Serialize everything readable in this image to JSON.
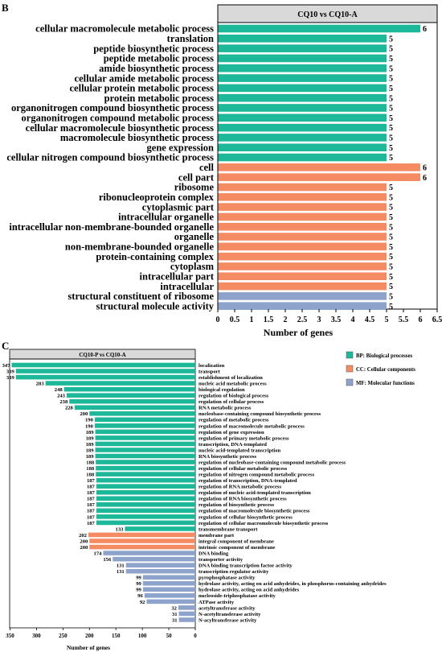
{
  "colors": {
    "bp": "#1db899",
    "cc": "#f58b62",
    "mf": "#8ea3cb",
    "strip": "#d9d9d9"
  },
  "panel_b": {
    "letter": "B"
  },
  "panel_c": {
    "letter": "C"
  },
  "legend": [
    {
      "label": "BP: Biological processes",
      "color": "#1db899"
    },
    {
      "label": "CC: Cellular components",
      "color": "#f58b62"
    },
    {
      "label": "MF: Molecular functions",
      "color": "#8ea3cb"
    }
  ],
  "chart_data": [
    {
      "type": "bar",
      "orientation": "horizontal",
      "title": "CQ10 vs CQ10-A",
      "xlabel": "Number of genes",
      "xlim": [
        0,
        6.5
      ],
      "xticks": [
        "0",
        "0.5",
        "1",
        "1.5",
        "2",
        "2.5",
        "3",
        "3.5",
        "4",
        "4.5",
        "5",
        "5.5",
        "6",
        "6.5"
      ],
      "categories": [
        {
          "label": "cellular macromolecule metabolic process",
          "value": 6,
          "group": "bp"
        },
        {
          "label": "translation",
          "value": 5,
          "group": "bp"
        },
        {
          "label": "peptide biosynthetic process",
          "value": 5,
          "group": "bp"
        },
        {
          "label": "peptide metabolic process",
          "value": 5,
          "group": "bp"
        },
        {
          "label": "amide biosynthetic process",
          "value": 5,
          "group": "bp"
        },
        {
          "label": "cellular amide metabolic process",
          "value": 5,
          "group": "bp"
        },
        {
          "label": "cellular protein metabolic process",
          "value": 5,
          "group": "bp"
        },
        {
          "label": "protein metabolic process",
          "value": 5,
          "group": "bp"
        },
        {
          "label": "organonitrogen compound biosynthetic process",
          "value": 5,
          "group": "bp"
        },
        {
          "label": "organonitrogen compound metabolic process",
          "value": 5,
          "group": "bp"
        },
        {
          "label": "cellular macromolecule biosynthetic process",
          "value": 5,
          "group": "bp"
        },
        {
          "label": "macromolecule biosynthetic process",
          "value": 5,
          "group": "bp"
        },
        {
          "label": "gene expression",
          "value": 5,
          "group": "bp"
        },
        {
          "label": "cellular nitrogen compound biosynthetic process",
          "value": 5,
          "group": "bp"
        },
        {
          "label": "cell",
          "value": 6,
          "group": "cc"
        },
        {
          "label": "cell part",
          "value": 6,
          "group": "cc"
        },
        {
          "label": "ribosome",
          "value": 5,
          "group": "cc"
        },
        {
          "label": "ribonucleoprotein complex",
          "value": 5,
          "group": "cc"
        },
        {
          "label": "cytoplasmic part",
          "value": 5,
          "group": "cc"
        },
        {
          "label": "intracellular organelle",
          "value": 5,
          "group": "cc"
        },
        {
          "label": "intracellular non-membrane-bounded organelle",
          "value": 5,
          "group": "cc"
        },
        {
          "label": "organelle",
          "value": 5,
          "group": "cc"
        },
        {
          "label": "non-membrane-bounded organelle",
          "value": 5,
          "group": "cc"
        },
        {
          "label": "protein-containing complex",
          "value": 5,
          "group": "cc"
        },
        {
          "label": "cytoplasm",
          "value": 5,
          "group": "cc"
        },
        {
          "label": "intracellular part",
          "value": 5,
          "group": "cc"
        },
        {
          "label": "intracellular",
          "value": 5,
          "group": "cc"
        },
        {
          "label": "structural constituent of ribosome",
          "value": 5,
          "group": "mf"
        },
        {
          "label": "structural molecule activity",
          "value": 5,
          "group": "mf"
        }
      ]
    },
    {
      "type": "bar",
      "orientation": "horizontal",
      "x_reversed": true,
      "title": "CQ10-P vs CQ10-A",
      "xlabel": "Number of genes",
      "xlim": [
        0,
        350
      ],
      "xticks": [
        "350",
        "300",
        "250",
        "200",
        "150",
        "100",
        "50",
        "0"
      ],
      "categories": [
        {
          "label": "localization",
          "value": 347,
          "group": "bp"
        },
        {
          "label": "transport",
          "value": 339,
          "group": "bp"
        },
        {
          "label": "establishment of localization",
          "value": 339,
          "group": "bp"
        },
        {
          "label": "nucleic acid metabolic process",
          "value": 283,
          "group": "bp"
        },
        {
          "label": "biological regulation",
          "value": 248,
          "group": "bp"
        },
        {
          "label": "regulation of biological process",
          "value": 243,
          "group": "bp"
        },
        {
          "label": "regulation of cellular process",
          "value": 238,
          "group": "bp"
        },
        {
          "label": "RNA metabolic process",
          "value": 228,
          "group": "bp"
        },
        {
          "label": "nucleobase-containing compound biosynthetic process",
          "value": 200,
          "group": "bp"
        },
        {
          "label": "regulation of metabolic process",
          "value": 190,
          "group": "bp"
        },
        {
          "label": "regulation of macromolecule metabolic process",
          "value": 190,
          "group": "bp"
        },
        {
          "label": "regulation of gene expression",
          "value": 189,
          "group": "bp"
        },
        {
          "label": "regulation of primary metabolic process",
          "value": 189,
          "group": "bp"
        },
        {
          "label": "transcription, DNA-templated",
          "value": 189,
          "group": "bp"
        },
        {
          "label": "nucleic acid-templated transcription",
          "value": 189,
          "group": "bp"
        },
        {
          "label": "RNA biosynthetic process",
          "value": 189,
          "group": "bp"
        },
        {
          "label": "regulation of nucleobase-containing compound metabolic process",
          "value": 188,
          "group": "bp"
        },
        {
          "label": "regulation of cellular metabolic process",
          "value": 188,
          "group": "bp"
        },
        {
          "label": "regulation of nitrogen compound metabolic process",
          "value": 188,
          "group": "bp"
        },
        {
          "label": "regulation of transcription, DNA-templated",
          "value": 187,
          "group": "bp"
        },
        {
          "label": "regulation of RNA metabolic process",
          "value": 187,
          "group": "bp"
        },
        {
          "label": "regulation of nucleic acid-templated transcription",
          "value": 187,
          "group": "bp"
        },
        {
          "label": "regulation of RNA biosynthetic process",
          "value": 187,
          "group": "bp"
        },
        {
          "label": "regulation of biosynthetic process",
          "value": 187,
          "group": "bp"
        },
        {
          "label": "regulation of macromolecule biosynthetic process",
          "value": 187,
          "group": "bp"
        },
        {
          "label": "regulation of cellular biosynthetic process",
          "value": 187,
          "group": "bp"
        },
        {
          "label": "regulation of cellular macromolecule biosynthetic process",
          "value": 187,
          "group": "bp"
        },
        {
          "label": "transmembrane transport",
          "value": 133,
          "group": "bp"
        },
        {
          "label": "membrane part",
          "value": 202,
          "group": "cc"
        },
        {
          "label": "integral component of membrane",
          "value": 200,
          "group": "cc"
        },
        {
          "label": "intrinsic component of membrane",
          "value": 200,
          "group": "cc"
        },
        {
          "label": "DNA binding",
          "value": 174,
          "group": "mf"
        },
        {
          "label": "transporter activity",
          "value": 156,
          "group": "mf"
        },
        {
          "label": "DNA binding transcription factor activity",
          "value": 131,
          "group": "mf"
        },
        {
          "label": "transcription regulator activity",
          "value": 131,
          "group": "mf"
        },
        {
          "label": "pyrophosphatase activity",
          "value": 99,
          "group": "mf"
        },
        {
          "label": "hydrolase activity, acting on acid anhydrides, in phosphorus-containing anhydrides",
          "value": 99,
          "group": "mf"
        },
        {
          "label": "hydrolase activity, acting on acid anhydrides",
          "value": 99,
          "group": "mf"
        },
        {
          "label": "nucleoside-triphosphatase activity",
          "value": 96,
          "group": "mf"
        },
        {
          "label": "ATPase activity",
          "value": 92,
          "group": "mf"
        },
        {
          "label": "acetyltransferase activity",
          "value": 32,
          "group": "mf"
        },
        {
          "label": "N-acetyltransferase activity",
          "value": 31,
          "group": "mf"
        },
        {
          "label": "N-acyltransferase activity",
          "value": 31,
          "group": "mf"
        }
      ]
    }
  ]
}
